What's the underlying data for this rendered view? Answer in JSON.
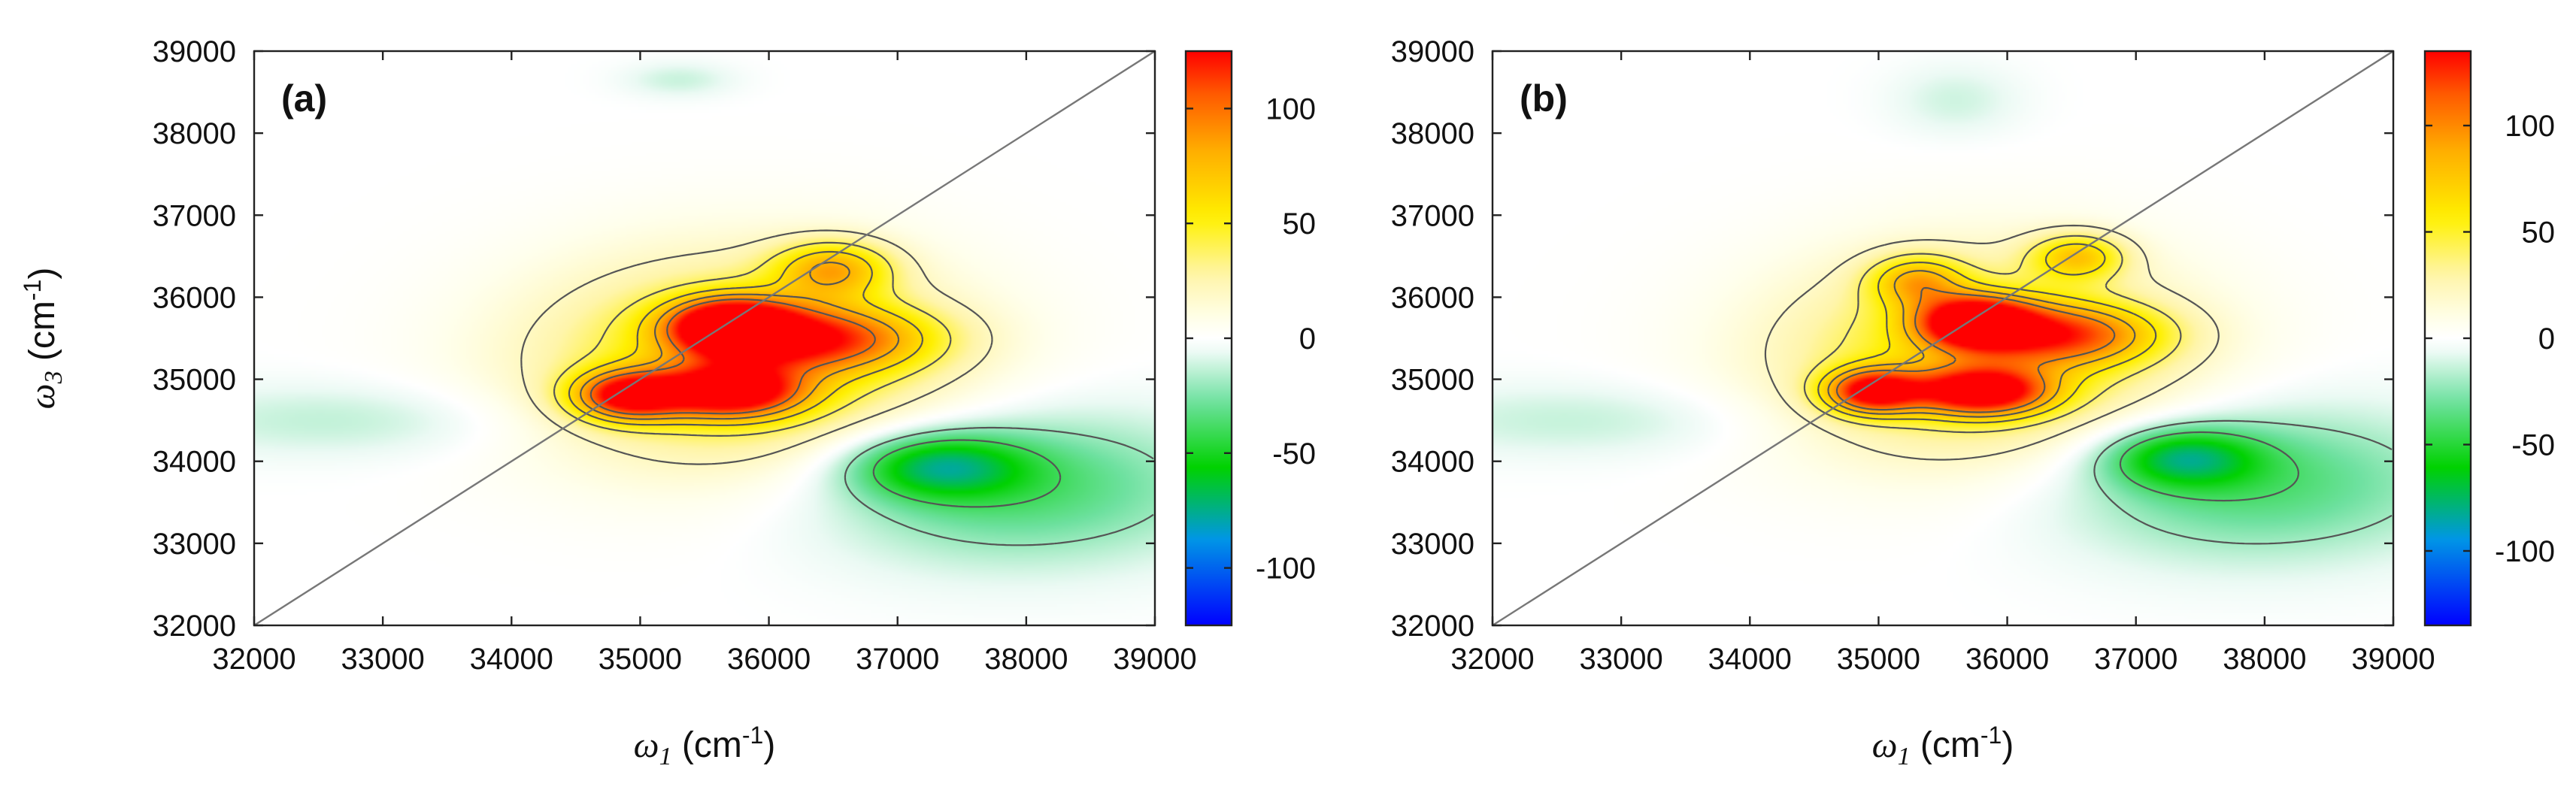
{
  "chart_data": [
    {
      "type": "heatmap",
      "panel_label": "(a)",
      "xlabel_symbol": "ω",
      "xlabel_sub": "1",
      "xlabel_unit_pre": " (cm",
      "xlabel_unit_sup": "-1",
      "xlabel_unit_post": ")",
      "ylabel_symbol": "ω",
      "ylabel_sub": "3",
      "ylabel_unit_pre": " (cm",
      "ylabel_unit_sup": "-1",
      "ylabel_unit_post": ")",
      "xlim": [
        32000,
        39000
      ],
      "ylim": [
        32000,
        39000
      ],
      "xticks": [
        32000,
        33000,
        34000,
        35000,
        36000,
        37000,
        38000,
        39000
      ],
      "yticks": [
        32000,
        33000,
        34000,
        35000,
        36000,
        37000,
        38000,
        39000
      ],
      "colorbar": {
        "range": [
          -125,
          125
        ],
        "ticks": [
          100,
          50,
          0,
          -50,
          -100
        ]
      },
      "diagonal_line": true,
      "peaks": [
        {
          "x": 35700,
          "y": 35650,
          "amplitude": 125,
          "sx": 330,
          "sy": 230
        },
        {
          "x": 34900,
          "y": 34800,
          "amplitude": 105,
          "sx": 300,
          "sy": 210
        },
        {
          "x": 35700,
          "y": 34850,
          "amplitude": 108,
          "sx": 380,
          "sy": 220
        },
        {
          "x": 36400,
          "y": 35500,
          "amplitude": 78,
          "sx": 600,
          "sy": 280
        },
        {
          "x": 36500,
          "y": 36350,
          "amplitude": 62,
          "sx": 320,
          "sy": 240
        },
        {
          "x": 35800,
          "y": 35200,
          "amplitude": 62,
          "sx": 1150,
          "sy": 900
        },
        {
          "x": 37300,
          "y": 33950,
          "amplitude": -55,
          "sx": 480,
          "sy": 280
        },
        {
          "x": 37900,
          "y": 33700,
          "amplitude": -38,
          "sx": 1100,
          "sy": 650
        },
        {
          "x": 32700,
          "y": 34500,
          "amplitude": -14,
          "sx": 1100,
          "sy": 320
        },
        {
          "x": 35300,
          "y": 38650,
          "amplitude": -12,
          "sx": 300,
          "sy": 150
        }
      ]
    },
    {
      "type": "heatmap",
      "panel_label": "(b)",
      "xlabel_symbol": "ω",
      "xlabel_sub": "1",
      "xlabel_unit_pre": " (cm",
      "xlabel_unit_sup": "-1",
      "xlabel_unit_post": ")",
      "ylabel_symbol": "",
      "ylabel_sub": "",
      "ylabel_unit_pre": "",
      "ylabel_unit_sup": "",
      "ylabel_unit_post": "",
      "xlim": [
        32000,
        39000
      ],
      "ylim": [
        32000,
        39000
      ],
      "xticks": [
        32000,
        33000,
        34000,
        35000,
        36000,
        37000,
        38000,
        39000
      ],
      "yticks": [
        32000,
        33000,
        34000,
        35000,
        36000,
        37000,
        38000,
        39000
      ],
      "colorbar": {
        "range": [
          -135,
          135
        ],
        "ticks": [
          100,
          50,
          0,
          -50,
          -100
        ]
      },
      "diagonal_line": true,
      "peaks": [
        {
          "x": 35750,
          "y": 35700,
          "amplitude": 130,
          "sx": 300,
          "sy": 210
        },
        {
          "x": 34950,
          "y": 34850,
          "amplitude": 115,
          "sx": 260,
          "sy": 190
        },
        {
          "x": 35800,
          "y": 34850,
          "amplitude": 118,
          "sx": 360,
          "sy": 200
        },
        {
          "x": 36450,
          "y": 35550,
          "amplitude": 80,
          "sx": 520,
          "sy": 260
        },
        {
          "x": 35300,
          "y": 36200,
          "amplitude": 60,
          "sx": 260,
          "sy": 220
        },
        {
          "x": 36550,
          "y": 36500,
          "amplitude": 60,
          "sx": 260,
          "sy": 200
        },
        {
          "x": 35800,
          "y": 35250,
          "amplitude": 65,
          "sx": 1100,
          "sy": 880
        },
        {
          "x": 37350,
          "y": 34050,
          "amplitude": -58,
          "sx": 420,
          "sy": 260
        },
        {
          "x": 37900,
          "y": 33750,
          "amplitude": -40,
          "sx": 1100,
          "sy": 650
        },
        {
          "x": 32700,
          "y": 34500,
          "amplitude": -14,
          "sx": 1100,
          "sy": 320
        },
        {
          "x": 35600,
          "y": 38400,
          "amplitude": -12,
          "sx": 350,
          "sy": 300
        }
      ]
    }
  ]
}
